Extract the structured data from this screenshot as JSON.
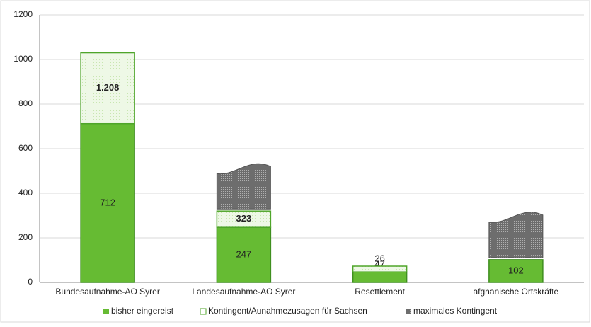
{
  "chart_data": {
    "type": "stacked_bar",
    "categories": [
      "Bundesaufnahme-AO Syrer",
      "Landesaufnahme-AO Syrer",
      "Resettlement",
      "afghanische Ortskräfte"
    ],
    "series": [
      {
        "name": "bisher eingereist",
        "color": "#66bb33",
        "values": [
          712,
          247,
          47,
          102
        ]
      },
      {
        "name": "Kontingent/Aunahmezusagen für Sachsen",
        "color": "#eaf6df",
        "values": [
          318,
          73,
          26,
          null
        ]
      },
      {
        "name": "maximales Kontingent",
        "color": "#7f7f7f",
        "values": [
          null,
          200,
          null,
          200
        ]
      }
    ],
    "annotations": [
      "1.208",
      "323"
    ],
    "ylim": [
      0,
      1200
    ],
    "yticks": [
      0,
      200,
      400,
      600,
      800,
      1000,
      1200
    ],
    "grid": true,
    "legend": "bottom"
  }
}
